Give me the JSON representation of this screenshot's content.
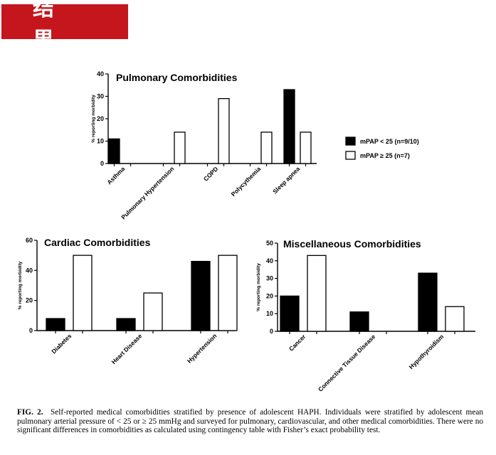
{
  "banner": {
    "text": "结 果"
  },
  "legend": {
    "series_a": "mPAP < 25 (n=9/10)",
    "series_b": "mPAP ≥ 25 (n=7)",
    "color_a": "#000000",
    "color_b": "#ffffff"
  },
  "caption": {
    "label": "FIG. 2.",
    "text": "Self-reported medical comorbidities stratified by presence of adolescent HAPH. Individuals were stratified by adolescent mean pulmonary arterial pressure of < 25 or ≥ 25 mmHg and surveyed for pulmonary, cardiovascular, and other medical comorbidities. There were no significant differences in comorbidities as calculated using contingency table with Fisher’s exact probability test."
  },
  "chart_data": [
    {
      "id": "pulmonary",
      "type": "bar",
      "title": "Pulmonary Comorbidities",
      "ylabel": "% reporting morbidity",
      "ylim": [
        0,
        40
      ],
      "yticks": [
        0,
        10,
        20,
        30,
        40
      ],
      "categories": [
        "Asthma",
        "Pulmonary Hypertension",
        "COPD",
        "Polycythemia",
        "Sleep apnea"
      ],
      "series": [
        {
          "name": "mPAP < 25 (n=9/10)",
          "values": [
            11,
            0,
            0,
            0,
            33
          ]
        },
        {
          "name": "mPAP ≥ 25 (n=7)",
          "values": [
            0,
            14,
            29,
            14,
            14
          ]
        }
      ]
    },
    {
      "id": "cardiac",
      "type": "bar",
      "title": "Cardiac Comorbidities",
      "ylabel": "% reporting morbidity",
      "ylim": [
        0,
        60
      ],
      "yticks": [
        0,
        20,
        40,
        60
      ],
      "categories": [
        "Diabetes",
        "Heart Disease",
        "Hypertension"
      ],
      "series": [
        {
          "name": "mPAP < 25 (n=9/10)",
          "values": [
            8,
            8,
            46
          ]
        },
        {
          "name": "mPAP ≥ 25 (n=7)",
          "values": [
            50,
            25,
            50
          ]
        }
      ]
    },
    {
      "id": "misc",
      "type": "bar",
      "title": "Miscellaneous Comorbidities",
      "ylabel": "% reporting morbidity",
      "ylim": [
        0,
        50
      ],
      "yticks": [
        0,
        10,
        20,
        30,
        40,
        50
      ],
      "categories": [
        "Cancer",
        "Connective Tissue Disease",
        "Hypothyroidism"
      ],
      "series": [
        {
          "name": "mPAP < 25 (n=9/10)",
          "values": [
            20,
            11,
            33
          ]
        },
        {
          "name": "mPAP ≥ 25 (n=7)",
          "values": [
            43,
            0,
            14
          ]
        }
      ]
    }
  ]
}
